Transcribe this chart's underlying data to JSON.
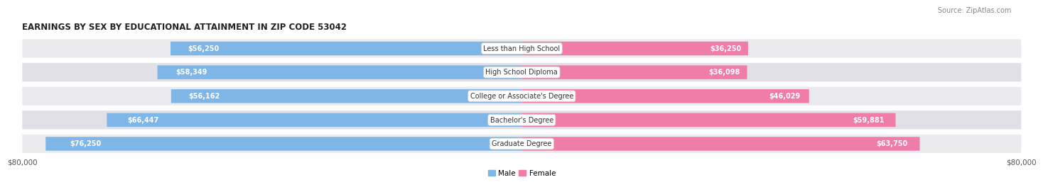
{
  "title": "EARNINGS BY SEX BY EDUCATIONAL ATTAINMENT IN ZIP CODE 53042",
  "source": "Source: ZipAtlas.com",
  "categories": [
    "Less than High School",
    "High School Diploma",
    "College or Associate's Degree",
    "Bachelor's Degree",
    "Graduate Degree"
  ],
  "male_values": [
    56250,
    58349,
    56162,
    66447,
    76250
  ],
  "female_values": [
    36250,
    36098,
    46029,
    59881,
    63750
  ],
  "male_color": "#7EB6E8",
  "female_color": "#F07CA8",
  "male_label": "Male",
  "female_label": "Female",
  "max_value": 80000,
  "fig_bg": "#ffffff",
  "row_bg": "#ebebee",
  "row_bg_alt": "#e0e0e6",
  "title_fontsize": 8.5,
  "bar_label_fontsize": 7.0,
  "category_fontsize": 7.0,
  "source_fontsize": 7.0
}
